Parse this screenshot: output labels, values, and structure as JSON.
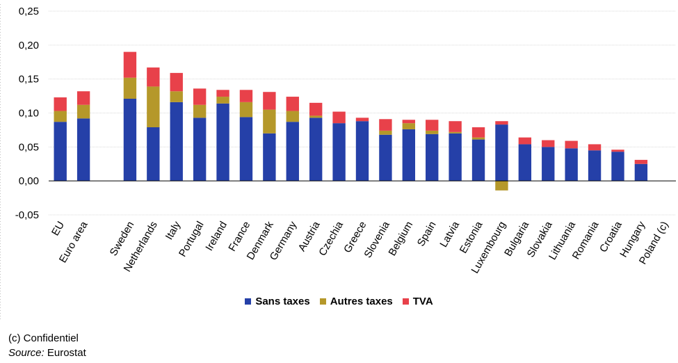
{
  "chart_data": {
    "type": "bar",
    "stacked": true,
    "categories": [
      "EU",
      "Euro area",
      "",
      "Sweden",
      "Netherlands",
      "Italy",
      "Portugal",
      "Ireland",
      "France",
      "Denmark",
      "Germany",
      "Austria",
      "Czechia",
      "Greece",
      "Slovenia",
      "Belgium",
      "Spain",
      "Latvia",
      "Estonia",
      "Luxembourg",
      "Bulgaria",
      "Slovakia",
      "Lithuania",
      "Romania",
      "Croatia",
      "Hungary",
      "Poland (c)"
    ],
    "series": [
      {
        "name": "Sans taxes",
        "color": "#2540a8",
        "values": [
          0.087,
          0.092,
          null,
          0.121,
          0.079,
          0.116,
          0.093,
          0.114,
          0.094,
          0.07,
          0.087,
          0.093,
          0.085,
          0.088,
          0.068,
          0.076,
          0.069,
          0.07,
          0.061,
          0.083,
          0.054,
          0.05,
          0.048,
          0.045,
          0.043,
          0.025,
          null
        ]
      },
      {
        "name": "Autres taxes",
        "color": "#b5982a",
        "values": [
          0.016,
          0.02,
          null,
          0.031,
          0.06,
          0.016,
          0.019,
          0.01,
          0.022,
          0.035,
          0.016,
          0.003,
          0.0,
          0.0,
          0.006,
          0.009,
          0.005,
          0.002,
          0.003,
          -0.014,
          0.0,
          0.0,
          0.0,
          0.0,
          0.0,
          0.0,
          null
        ]
      },
      {
        "name": "TVA",
        "color": "#e8414a",
        "values": [
          0.02,
          0.02,
          null,
          0.038,
          0.028,
          0.027,
          0.024,
          0.01,
          0.018,
          0.026,
          0.021,
          0.019,
          0.017,
          0.005,
          0.017,
          0.005,
          0.016,
          0.016,
          0.015,
          0.005,
          0.01,
          0.01,
          0.011,
          0.009,
          0.003,
          0.006,
          null
        ]
      }
    ],
    "ylim": [
      -0.05,
      0.25
    ],
    "yticks": [
      "-0,05",
      "0,00",
      "0,05",
      "0,10",
      "0,15",
      "0,20",
      "0,25"
    ],
    "ytick_values": [
      -0.05,
      0.0,
      0.05,
      0.1,
      0.15,
      0.2,
      0.25
    ],
    "grid": true,
    "legend_position": "bottom"
  },
  "footnotes": {
    "note": "(c) Confidentiel",
    "source_label": "Source:",
    "source_value": " Eurostat"
  }
}
